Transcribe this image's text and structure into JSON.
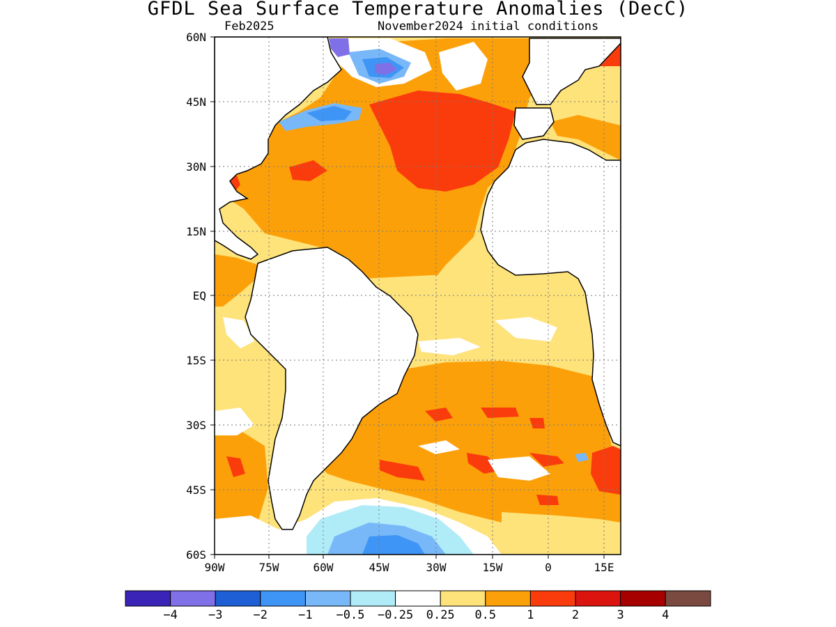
{
  "title": "GFDL Sea Surface Temperature Anomalies (DecC)",
  "subtitle_left": "Feb2025",
  "subtitle_right": "November2024 initial conditions",
  "map": {
    "lon_range": [
      -90,
      20
    ],
    "lat_range": [
      -60,
      60
    ],
    "lat_ticks": [
      "60N",
      "45N",
      "30N",
      "15N",
      "EQ",
      "15S",
      "30S",
      "45S",
      "60S"
    ],
    "lon_ticks": [
      "90W",
      "75W",
      "60W",
      "45W",
      "30W",
      "15W",
      "0",
      "15E"
    ],
    "grid": true,
    "land_color": "#ffffff",
    "coast_color": "#000000"
  },
  "colorbar": {
    "labels": [
      "−4",
      "−3",
      "−2",
      "−1",
      "−0.5",
      "−0.25",
      "0.25",
      "0.5",
      "1",
      "2",
      "3",
      "4"
    ],
    "colors": [
      "#3a24b8",
      "#8070e8",
      "#1e5fd6",
      "#3f95f5",
      "#78b8f8",
      "#b0ecf8",
      "#ffffff",
      "#fee27a",
      "#fca00a",
      "#fa3c0c",
      "#dc1410",
      "#a60000",
      "#7a4a40"
    ]
  },
  "palette": {
    "strong_warm": "#fa3c0c",
    "warm": "#fca00a",
    "mild_warm": "#fee27a",
    "neutral": "#ffffff",
    "mild_cool": "#b0ecf8",
    "cool": "#78b8f8",
    "colder": "#3f95f5",
    "coldest": "#8070e8"
  }
}
